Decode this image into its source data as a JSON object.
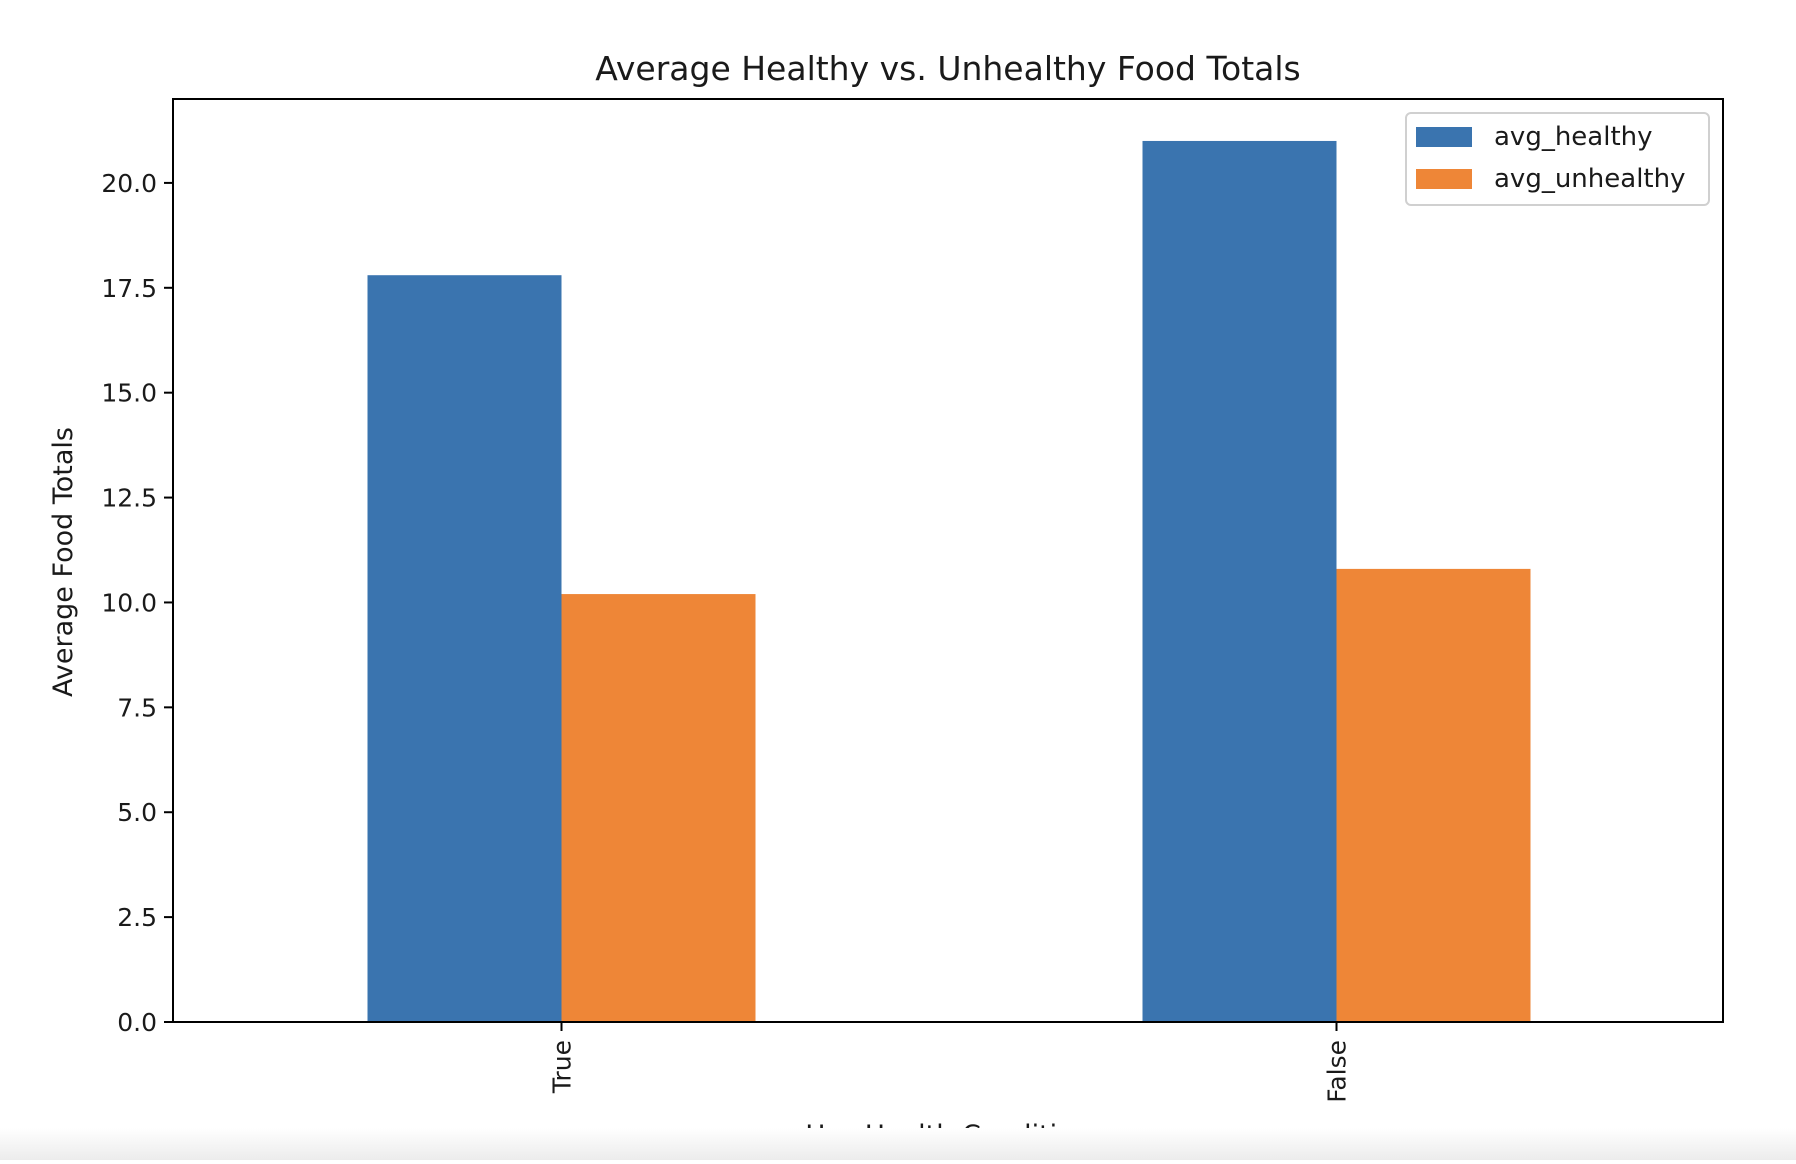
{
  "chart_data": {
    "type": "bar",
    "title": "Average Healthy vs. Unhealthy Food Totals",
    "xlabel": "Has Health Condition",
    "ylabel": "Average Food Totals",
    "categories": [
      "True",
      "False"
    ],
    "series": [
      {
        "name": "avg_healthy",
        "values": [
          17.8,
          21.0
        ],
        "color": "#3a74af"
      },
      {
        "name": "avg_unhealthy",
        "values": [
          10.2,
          10.8
        ],
        "color": "#ee8637"
      }
    ],
    "ylim": [
      0,
      22.0
    ],
    "yticks": [
      0.0,
      2.5,
      5.0,
      7.5,
      10.0,
      12.5,
      15.0,
      17.5,
      20.0
    ],
    "ytick_labels": [
      "0.0",
      "2.5",
      "5.0",
      "7.5",
      "10.0",
      "12.5",
      "15.0",
      "17.5",
      "20.0"
    ],
    "grid": false,
    "legend_position": "top-right"
  }
}
